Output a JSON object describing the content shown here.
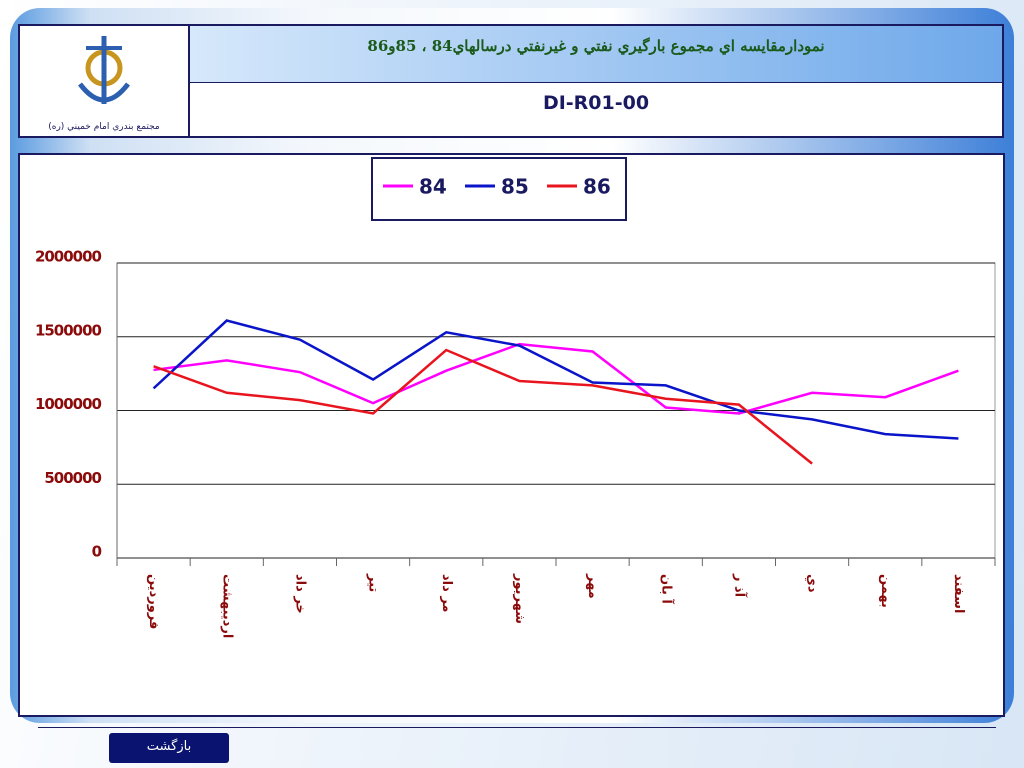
{
  "header": {
    "title": "نمودارمقايسه اي مجموع بارگيري نفتي و غيرنفتي درسالهاي84 ، 85و86",
    "code": "DI-R01-00",
    "logo_caption": "مجتمع بندري امام خميني (ره)"
  },
  "footer": {
    "button": "بازگشت"
  },
  "chart_data": {
    "type": "line",
    "categories": [
      "فروردين",
      "ارديبهشت",
      "خر داد",
      "تير",
      "مر داد",
      "شهريور",
      "مهر",
      "آ بان",
      "آذ ر",
      "دي",
      "بهمن",
      "اسفند"
    ],
    "series": [
      {
        "name": "84",
        "color": "#ff00ff",
        "values": [
          1275000,
          1340000,
          1260000,
          1050000,
          1270000,
          1450000,
          1400000,
          1020000,
          980000,
          1120000,
          1090000,
          1270000
        ]
      },
      {
        "name": "85",
        "color": "#0a14c8",
        "values": [
          1150000,
          1610000,
          1480000,
          1210000,
          1530000,
          1440000,
          1190000,
          1170000,
          1000000,
          940000,
          840000,
          810000
        ]
      },
      {
        "name": "86",
        "color": "#e8141e",
        "values": [
          1300000,
          1120000,
          1070000,
          980000,
          1410000,
          1200000,
          1170000,
          1080000,
          1040000,
          640000,
          null,
          null
        ]
      }
    ],
    "ylim": [
      0,
      2000000
    ],
    "yticks": [
      0,
      500000,
      1000000,
      1500000,
      2000000
    ],
    "grid": true,
    "legend": "top"
  }
}
